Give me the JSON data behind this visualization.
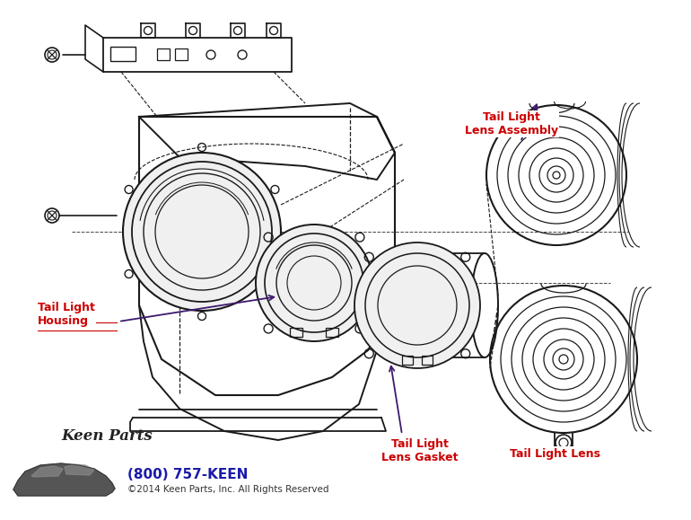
{
  "bg_color": "#ffffff",
  "line_color": "#1a1a1a",
  "label_red": "#cc0000",
  "label_purple": "#3d1a6e",
  "phone_color": "#1a1aaa",
  "figsize": [
    7.7,
    5.79
  ],
  "dpi": 100,
  "labels": {
    "lens_assembly": "Tail Light\nLens Assembly",
    "housing": "Tail Light\nHousing",
    "lens_gasket": "Tail Light\nLens Gasket",
    "lens": "Tail Light Lens",
    "phone": "(800) 757-KEEN",
    "copyright": "©2014 Keen Parts, Inc. All Rights Reserved"
  }
}
